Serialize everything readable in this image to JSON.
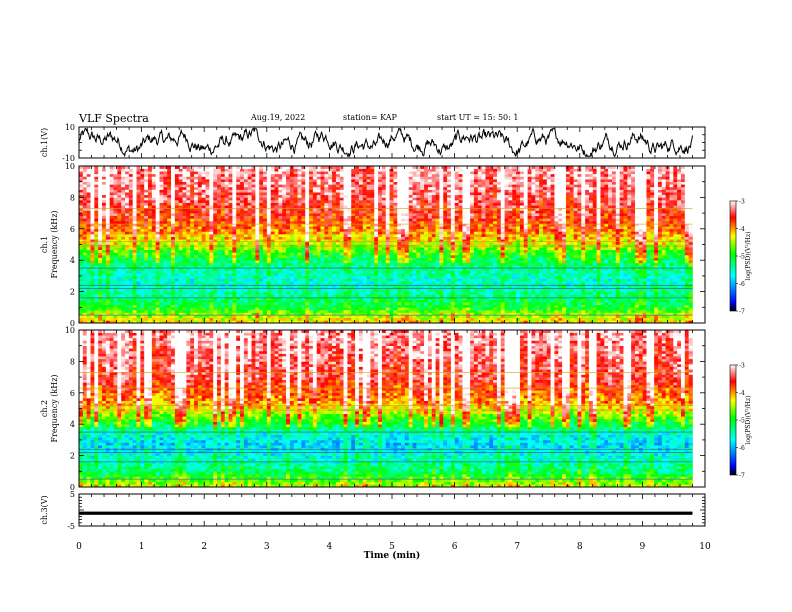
{
  "header": {
    "title": "VLF Spectra",
    "date": "Aug.19, 2022",
    "station": "station= KAP",
    "start": "start  UT  =   15: 50: 1"
  },
  "chart_data": [
    {
      "type": "line",
      "panel": "ch1-waveform",
      "ylabel": "ch.1(V)",
      "ylim": [
        -10,
        10
      ],
      "ytick_labels": [
        "10",
        "-10"
      ],
      "xlim": [
        0,
        10
      ],
      "series": [
        {
          "values_approx": "noisy waveform oscillating roughly between -8 and 8 V",
          "color": "#000000"
        }
      ]
    },
    {
      "type": "heatmap",
      "panel": "ch1-spectrogram",
      "ylabel": "ch.1 Frequency (kHz)",
      "ylabel_lines": [
        "ch.1",
        "Frequency  (kHz)"
      ],
      "ylim": [
        0,
        10
      ],
      "ytick_labels": [
        "0",
        "2",
        "4",
        "6",
        "8",
        "10"
      ],
      "xlim": [
        0,
        9.8
      ],
      "bands_kHz_vs_log_psd": [
        [
          0.0,
          -4.2
        ],
        [
          0.6,
          -4.6
        ],
        [
          1.0,
          -5.1
        ],
        [
          1.6,
          -5.3
        ],
        [
          2.2,
          -5.5
        ],
        [
          2.8,
          -5.6
        ],
        [
          3.4,
          -5.4
        ],
        [
          4.0,
          -5.2
        ],
        [
          4.6,
          -4.8
        ],
        [
          5.2,
          -4.3
        ],
        [
          6.0,
          -3.9
        ],
        [
          7.0,
          -3.6
        ],
        [
          8.0,
          -3.4
        ],
        [
          9.0,
          -3.3
        ],
        [
          10.0,
          -3.2
        ]
      ],
      "colorbar": {
        "label": "log(PSD)(V²/Hz)",
        "range": [
          -7,
          -3
        ],
        "tick_labels": [
          "-3",
          "-4",
          "-5",
          "-6",
          "-7"
        ]
      }
    },
    {
      "type": "heatmap",
      "panel": "ch2-spectrogram",
      "ylabel": "ch.2 Frequency (kHz)",
      "ylabel_lines": [
        "ch.2",
        "Frequency  (kHz)"
      ],
      "ylim": [
        0,
        10
      ],
      "ytick_labels": [
        "0",
        "2",
        "4",
        "6",
        "8",
        "10"
      ],
      "xlim": [
        0,
        9.8
      ],
      "bands_kHz_vs_log_psd": [
        [
          0.0,
          -4.4
        ],
        [
          0.6,
          -4.9
        ],
        [
          1.0,
          -5.3
        ],
        [
          1.6,
          -5.5
        ],
        [
          2.2,
          -5.7
        ],
        [
          2.8,
          -5.9
        ],
        [
          3.4,
          -5.6
        ],
        [
          4.0,
          -5.1
        ],
        [
          4.6,
          -4.6
        ],
        [
          5.2,
          -4.1
        ],
        [
          6.0,
          -3.8
        ],
        [
          7.0,
          -3.5
        ],
        [
          8.0,
          -3.4
        ],
        [
          9.0,
          -3.3
        ],
        [
          10.0,
          -3.2
        ]
      ],
      "colorbar": {
        "label": "log(PSD)(V²/Hz)",
        "range": [
          -7,
          -3
        ],
        "tick_labels": [
          "-3",
          "-4",
          "-5",
          "-6",
          "-7"
        ]
      }
    },
    {
      "type": "line",
      "panel": "ch3-waveform",
      "ylabel": "ch.3(V)",
      "ylim": [
        -5,
        5
      ],
      "ytick_labels": [
        "5",
        "-5"
      ],
      "xlim": [
        0,
        10
      ],
      "series": [
        {
          "values_approx": "constant near -1 V",
          "color": "#000000"
        }
      ]
    }
  ],
  "xaxis": {
    "label": "Time  (min)",
    "range": [
      0,
      10
    ],
    "tick_labels": [
      "0",
      "1",
      "2",
      "3",
      "4",
      "5",
      "6",
      "7",
      "8",
      "9",
      "10"
    ]
  }
}
